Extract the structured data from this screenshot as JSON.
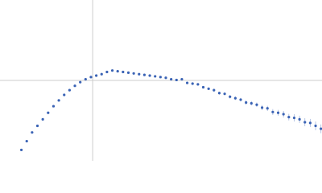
{
  "chart_data": {
    "type": "scatter",
    "x": [
      0.4,
      0.5,
      0.6,
      0.7,
      0.8,
      0.9,
      1.0,
      1.1,
      1.2,
      1.3,
      1.4,
      1.5,
      1.6,
      1.7,
      1.8,
      1.9,
      2.0,
      2.1,
      2.2,
      2.3,
      2.4,
      2.5,
      2.6,
      2.7,
      2.8,
      2.9,
      3.0,
      3.1,
      3.2,
      3.3,
      3.4,
      3.5,
      3.6,
      3.7,
      3.8,
      3.9,
      4.0,
      4.1,
      4.2,
      4.3,
      4.4,
      4.5,
      4.6,
      4.7,
      4.8,
      4.9,
      5.0,
      5.1,
      5.2,
      5.3,
      5.4,
      5.5,
      5.6,
      5.7,
      5.8,
      5.9,
      6.0
    ],
    "series": [
      {
        "color": "#3a63b5",
        "values": [
          0.15,
          0.27,
          0.39,
          0.48,
          0.57,
          0.66,
          0.75,
          0.83,
          0.905,
          0.97,
          1.03,
          1.08,
          1.12,
          1.15,
          1.17,
          1.19,
          1.22,
          1.24,
          1.23,
          1.22,
          1.21,
          1.2,
          1.19,
          1.18,
          1.17,
          1.16,
          1.15,
          1.14,
          1.12,
          1.11,
          1.12,
          1.07,
          1.06,
          1.05,
          1.01,
          0.99,
          0.97,
          0.93,
          0.92,
          0.88,
          0.86,
          0.84,
          0.8,
          0.79,
          0.77,
          0.73,
          0.72,
          0.67,
          0.66,
          0.64,
          0.6,
          0.59,
          0.57,
          0.53,
          0.52,
          0.48,
          0.44
        ],
        "errors": [
          0.005,
          0.005,
          0.005,
          0.005,
          0.005,
          0.005,
          0.005,
          0.005,
          0.005,
          0.005,
          0.005,
          0.005,
          0.005,
          0.005,
          0.005,
          0.005,
          0.005,
          0.005,
          0.005,
          0.005,
          0.005,
          0.005,
          0.005,
          0.005,
          0.005,
          0.005,
          0.01,
          0.01,
          0.01,
          0.01,
          0.01,
          0.015,
          0.015,
          0.015,
          0.015,
          0.015,
          0.02,
          0.02,
          0.02,
          0.025,
          0.025,
          0.025,
          0.03,
          0.03,
          0.03,
          0.035,
          0.035,
          0.04,
          0.04,
          0.045,
          0.045,
          0.05,
          0.05,
          0.055,
          0.055,
          0.06,
          0.06
        ]
      }
    ],
    "reference_lines": {
      "x": 1.732,
      "y": 1.104
    },
    "xlim": [
      0,
      6.02
    ],
    "ylim": [
      0,
      2.208
    ]
  }
}
